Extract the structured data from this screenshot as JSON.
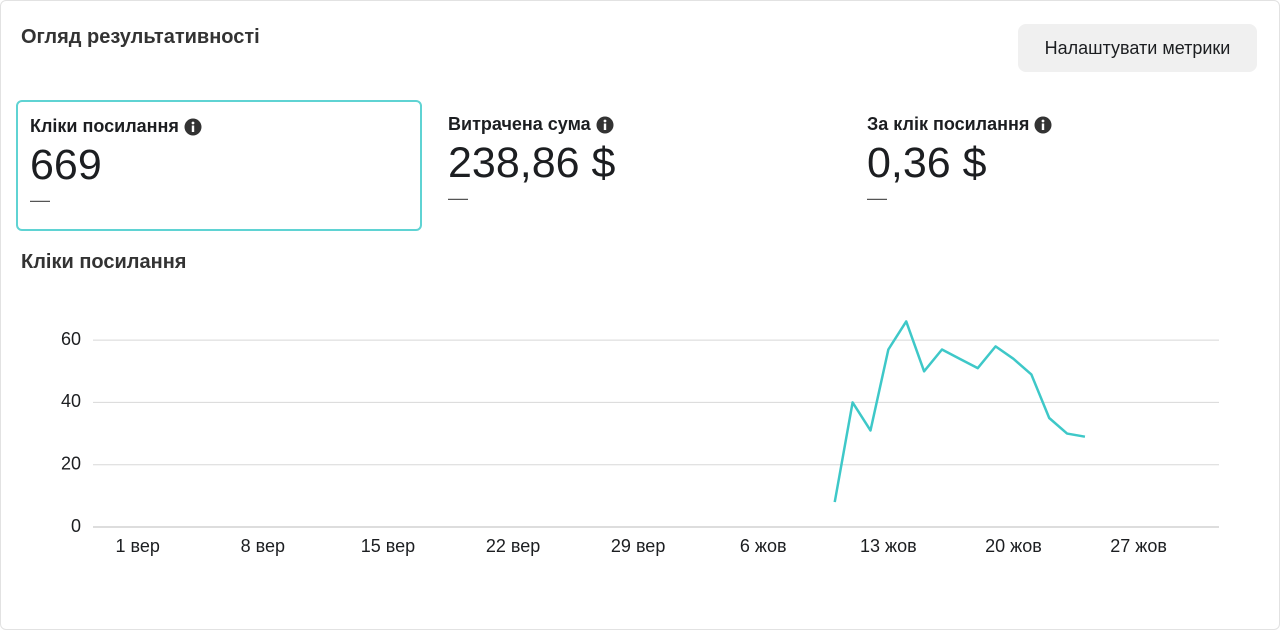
{
  "header": {
    "title": "Огляд результативності",
    "button": "Налаштувати метрики"
  },
  "metrics": [
    {
      "label": "Кліки посилання",
      "value": "669",
      "change": "––"
    },
    {
      "label": "Витрачена сума",
      "value": "238,86 $",
      "change": "––"
    },
    {
      "label": "За клік посилання",
      "value": "0,36 $",
      "change": "––"
    }
  ],
  "chart_data": {
    "type": "line",
    "title": "Кліки посилання",
    "categories": [
      null,
      null,
      "1 вер",
      null,
      null,
      null,
      null,
      null,
      null,
      "8 вер",
      null,
      null,
      null,
      null,
      null,
      null,
      "15 вер",
      null,
      null,
      null,
      null,
      null,
      null,
      "22 вер",
      null,
      null,
      null,
      null,
      null,
      null,
      "29 вер",
      null,
      null,
      null,
      null,
      null,
      null,
      "6 жов",
      null,
      null,
      null,
      null,
      null,
      null,
      "13 жов",
      null,
      null,
      null,
      null,
      null,
      null,
      "20 жов",
      null,
      null,
      null,
      null,
      null,
      null,
      "27 жов",
      null,
      null,
      null,
      null
    ],
    "values": [
      null,
      null,
      null,
      null,
      null,
      null,
      null,
      null,
      null,
      null,
      null,
      null,
      null,
      null,
      null,
      null,
      null,
      null,
      null,
      null,
      null,
      null,
      null,
      null,
      null,
      null,
      null,
      null,
      null,
      null,
      null,
      null,
      null,
      null,
      null,
      null,
      null,
      null,
      null,
      null,
      null,
      8,
      40,
      31,
      57,
      66,
      50,
      57,
      54,
      51,
      58,
      54,
      49,
      35,
      30,
      29,
      null,
      null,
      null,
      null,
      null,
      null,
      null
    ],
    "color": "#3ec8c8",
    "ylim": [
      0,
      70
    ],
    "yticks": [
      0,
      20,
      40,
      60
    ],
    "grid": true
  }
}
